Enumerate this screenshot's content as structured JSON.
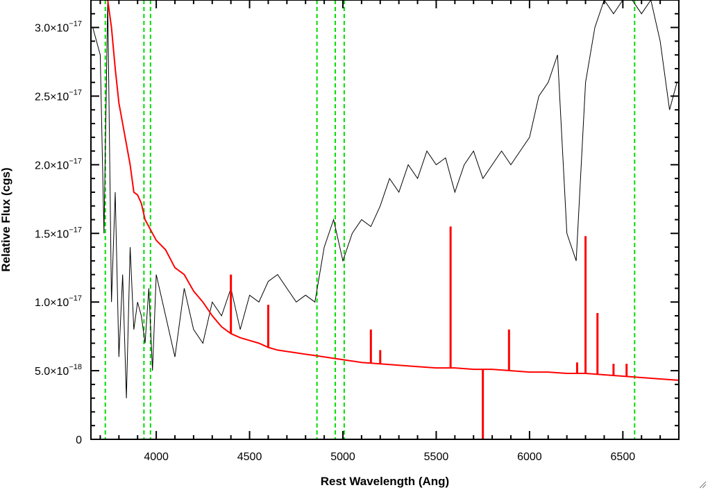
{
  "chart_data": {
    "type": "line",
    "xlabel": "Rest Wavelength (Ang)",
    "ylabel": "Relative Flux (cgs)",
    "xlim": [
      3650,
      6800
    ],
    "ylim": [
      0,
      3.2e-17
    ],
    "x_ticks": [
      4000,
      4500,
      5000,
      5500,
      6000,
      6500
    ],
    "x_tick_labels": [
      "4000",
      "4500",
      "5000",
      "5500",
      "6000",
      "6500"
    ],
    "y_ticks": [
      0,
      5e-18,
      1e-17,
      1.5e-17,
      2e-17,
      2.5e-17,
      3e-17
    ],
    "y_tick_labels": [
      {
        "mantissa": "0",
        "exponent": ""
      },
      {
        "mantissa": "5.0×10",
        "exponent": "−18"
      },
      {
        "mantissa": "1.0×10",
        "exponent": "−17"
      },
      {
        "mantissa": "1.5×10",
        "exponent": "−17"
      },
      {
        "mantissa": "2.0×10",
        "exponent": "−17"
      },
      {
        "mantissa": "2.5×10",
        "exponent": "−17"
      },
      {
        "mantissa": "3.0×10",
        "exponent": "−17"
      }
    ],
    "vertical_lines": [
      3727,
      3934,
      3969,
      4861,
      4959,
      5007,
      6563
    ],
    "series": [
      {
        "color": "#000000",
        "x": [
          3660,
          3700,
          3720,
          3740,
          3760,
          3780,
          3800,
          3820,
          3840,
          3860,
          3880,
          3900,
          3920,
          3940,
          3960,
          3980,
          4000,
          4050,
          4100,
          4150,
          4200,
          4250,
          4300,
          4350,
          4400,
          4450,
          4500,
          4550,
          4600,
          4650,
          4700,
          4750,
          4800,
          4850,
          4900,
          4950,
          5000,
          5050,
          5100,
          5150,
          5200,
          5250,
          5300,
          5350,
          5400,
          5450,
          5500,
          5550,
          5600,
          5650,
          5700,
          5750,
          5800,
          5850,
          5900,
          5950,
          6000,
          6050,
          6100,
          6150,
          6200,
          6250,
          6300,
          6350,
          6400,
          6450,
          6500,
          6550,
          6600,
          6650,
          6700,
          6750,
          6790
        ],
        "y": [
          3e-17,
          2.8e-17,
          1.5e-17,
          3.2e-17,
          1e-17,
          1.8e-17,
          6e-18,
          1.2e-17,
          3e-18,
          1.4e-17,
          8e-18,
          1e-17,
          9e-18,
          7e-18,
          1.1e-17,
          5e-18,
          1.2e-17,
          9e-18,
          6e-18,
          1.1e-17,
          8e-18,
          7e-18,
          1e-17,
          9e-18,
          1.1e-17,
          8e-18,
          1.05e-17,
          1e-17,
          1.15e-17,
          1.2e-17,
          1.1e-17,
          1e-17,
          1.05e-17,
          1e-17,
          1.4e-17,
          1.6e-17,
          1.3e-17,
          1.5e-17,
          1.6e-17,
          1.55e-17,
          1.7e-17,
          1.9e-17,
          1.8e-17,
          2e-17,
          1.9e-17,
          2.1e-17,
          2e-17,
          2.05e-17,
          1.8e-17,
          2e-17,
          2.1e-17,
          1.9e-17,
          2e-17,
          2.1e-17,
          2e-17,
          2.1e-17,
          2.2e-17,
          2.5e-17,
          2.6e-17,
          2.8e-17,
          1.5e-17,
          1.3e-17,
          2.6e-17,
          3e-17,
          3.2e-17,
          3.1e-17,
          3.2e-17,
          3.2e-17,
          3.1e-17,
          3.2e-17,
          2.9e-17,
          2.4e-17,
          2.6e-17
        ]
      },
      {
        "color": "#ff0000",
        "x": [
          3720,
          3740,
          3760,
          3780,
          3800,
          3820,
          3840,
          3860,
          3880,
          3900,
          3920,
          3940,
          3960,
          3980,
          4000,
          4050,
          4100,
          4150,
          4200,
          4250,
          4300,
          4350,
          4400,
          4450,
          4500,
          4550,
          4600,
          4650,
          4700,
          4750,
          4800,
          4850,
          4900,
          4950,
          5000,
          5050,
          5100,
          5200,
          5300,
          5400,
          5500,
          5600,
          5700,
          5800,
          5900,
          6000,
          6100,
          6200,
          6300,
          6400,
          6500,
          6600,
          6700,
          6800
        ],
        "y": [
          3.6e-17,
          3.2e-17,
          3e-17,
          2.7e-17,
          2.45e-17,
          2.3e-17,
          2.15e-17,
          2e-17,
          1.8e-17,
          1.78e-17,
          1.72e-17,
          1.6e-17,
          1.55e-17,
          1.5e-17,
          1.45e-17,
          1.38e-17,
          1.25e-17,
          1.2e-17,
          1.08e-17,
          1e-17,
          9e-18,
          8.2e-18,
          7.7e-18,
          7.4e-18,
          7.2e-18,
          7e-18,
          6.7e-18,
          6.5e-18,
          6.4e-18,
          6.3e-18,
          6.2e-18,
          6.1e-18,
          6e-18,
          5.9e-18,
          5.8e-18,
          5.7e-18,
          5.6e-18,
          5.5e-18,
          5.4e-18,
          5.3e-18,
          5.2e-18,
          5.2e-18,
          5.1e-18,
          5.1e-18,
          5e-18,
          4.9e-18,
          4.9e-18,
          4.8e-18,
          4.8e-18,
          4.7e-18,
          4.6e-18,
          4.5e-18,
          4.4e-18,
          4.3e-18
        ]
      }
    ],
    "model_spikes": [
      {
        "x": 4400,
        "y": 1.2e-17
      },
      {
        "x": 4600,
        "y": 9.8e-18
      },
      {
        "x": 5150,
        "y": 8e-18
      },
      {
        "x": 5200,
        "y": 6.5e-18
      },
      {
        "x": 5577,
        "y": 1.55e-17
      },
      {
        "x": 5750,
        "y": 0
      },
      {
        "x": 5890,
        "y": 8e-18
      },
      {
        "x": 6255,
        "y": 5.6e-18
      },
      {
        "x": 6300,
        "y": 1.48e-17
      },
      {
        "x": 6364,
        "y": 9.2e-18
      },
      {
        "x": 6450,
        "y": 5.5e-18
      },
      {
        "x": 6520,
        "y": 5.5e-18
      }
    ],
    "colors": {
      "observed": "#000000",
      "model": "#ff0000",
      "marker_lines": "#00dd00"
    }
  }
}
